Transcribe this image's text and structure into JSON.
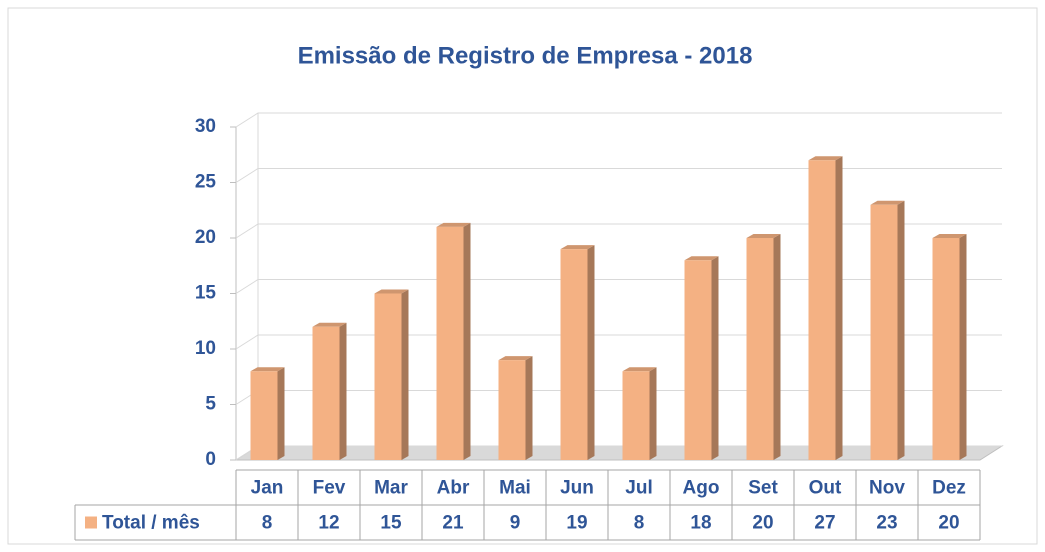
{
  "chart_data": {
    "type": "bar",
    "title": "Emissão de Registro de Empresa - 2018",
    "categories": [
      "Jan",
      "Fev",
      "Mar",
      "Abr",
      "Mai",
      "Jun",
      "Jul",
      "Ago",
      "Set",
      "Out",
      "Nov",
      "Dez"
    ],
    "series": [
      {
        "name": "Total / mês",
        "color": "#f4b183",
        "values": [
          8,
          12,
          15,
          21,
          9,
          19,
          8,
          18,
          20,
          27,
          23,
          20
        ]
      }
    ],
    "ylim": [
      0,
      30
    ],
    "yticks": [
      0,
      5,
      10,
      15,
      20,
      25,
      30
    ],
    "grid": true,
    "data_table": true
  }
}
